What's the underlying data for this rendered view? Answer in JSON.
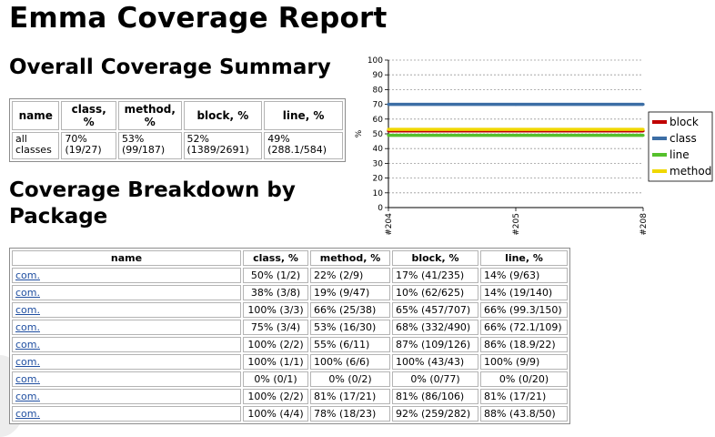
{
  "report_title": "Emma Coverage Report",
  "summary": {
    "heading": "Overall Coverage Summary",
    "columns": [
      "name",
      "class, %",
      "method, %",
      "block, %",
      "line, %"
    ],
    "row": [
      "all classes",
      "70% (19/27)",
      "53% (99/187)",
      "52% (1389/2691)",
      "49% (288.1/584)"
    ]
  },
  "breakdown": {
    "heading": "Coverage Breakdown by Package",
    "columns": [
      "name",
      "class, %",
      "method, %",
      "block, %",
      "line, %"
    ],
    "rows": [
      {
        "name": "com.",
        "class": "50% (1/2)",
        "method": "22% (2/9)",
        "block": "17% (41/235)",
        "line": "14% (9/63)"
      },
      {
        "name": "com.",
        "class": "38% (3/8)",
        "method": "19% (9/47)",
        "block": "10% (62/625)",
        "line": "14% (19/140)"
      },
      {
        "name": "com.",
        "class": "100% (3/3)",
        "method": "66% (25/38)",
        "block": "65% (457/707)",
        "line": "66% (99.3/150)"
      },
      {
        "name": "com.",
        "class": "75% (3/4)",
        "method": "53% (16/30)",
        "block": "68% (332/490)",
        "line": "66% (72.1/109)"
      },
      {
        "name": "com.",
        "class": "100% (2/2)",
        "method": "55% (6/11)",
        "block": "87% (109/126)",
        "line": "86% (18.9/22)"
      },
      {
        "name": "com.",
        "class": "100% (1/1)",
        "method": "100% (6/6)",
        "block": "100% (43/43)",
        "line": "100% (9/9)"
      },
      {
        "name": "com.",
        "class": "0% (0/1)",
        "method": "0% (0/2)",
        "block": "0% (0/77)",
        "line": "0% (0/20)"
      },
      {
        "name": "com.",
        "class": "100% (2/2)",
        "method": "81% (17/21)",
        "block": "81% (86/106)",
        "line": "81% (17/21)"
      },
      {
        "name": "com.",
        "class": "100% (4/4)",
        "method": "78% (18/23)",
        "block": "92% (259/282)",
        "line": "88% (43.8/50)"
      }
    ]
  },
  "chart_data": {
    "type": "line",
    "title": "",
    "xlabel": "",
    "ylabel": "%",
    "ylim": [
      0,
      100
    ],
    "yticks": [
      0,
      10,
      20,
      30,
      40,
      50,
      60,
      70,
      80,
      90,
      100
    ],
    "grid": true,
    "legend_position": "right",
    "categories": [
      "#204",
      "#205",
      "#208"
    ],
    "series": [
      {
        "name": "block",
        "color": "#c00000",
        "values": [
          52,
          52,
          52
        ]
      },
      {
        "name": "class",
        "color": "#3c6ea5",
        "values": [
          70,
          70,
          70
        ]
      },
      {
        "name": "line",
        "color": "#55c02c",
        "values": [
          49,
          49,
          49
        ]
      },
      {
        "name": "method",
        "color": "#f0d800",
        "values": [
          53,
          53,
          53
        ]
      }
    ]
  }
}
